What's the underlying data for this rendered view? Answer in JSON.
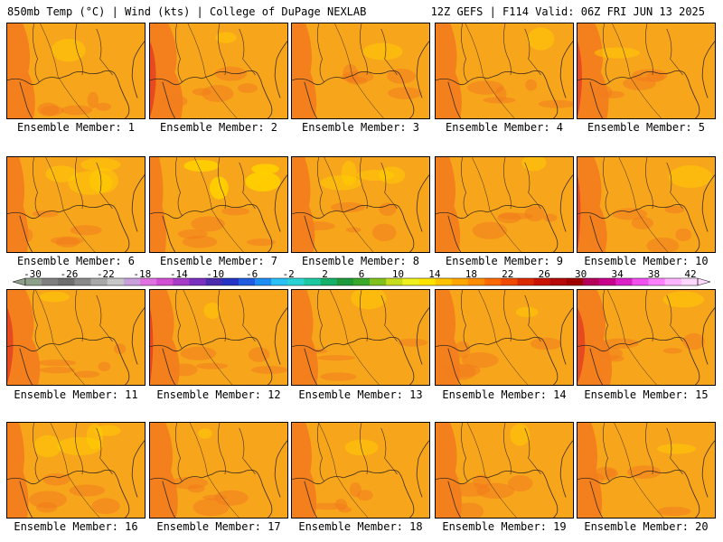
{
  "header": {
    "left": "850mb Temp (°C) | Wind (kts) | College of DuPage NEXLAB",
    "right": "12Z GEFS | F114 Valid: 06Z FRI JUN 13 2025"
  },
  "panels": [
    {
      "label": "Ensemble Member: 1",
      "warm": 0.55
    },
    {
      "label": "Ensemble Member: 2",
      "warm": 0.7
    },
    {
      "label": "Ensemble Member: 3",
      "warm": 0.45
    },
    {
      "label": "Ensemble Member: 4",
      "warm": 0.5
    },
    {
      "label": "Ensemble Member: 5",
      "warm": 0.65
    },
    {
      "label": "Ensemble Member: 6",
      "warm": 0.35
    },
    {
      "label": "Ensemble Member: 7",
      "warm": 0.2
    },
    {
      "label": "Ensemble Member: 8",
      "warm": 0.4
    },
    {
      "label": "Ensemble Member: 9",
      "warm": 0.45
    },
    {
      "label": "Ensemble Member: 10",
      "warm": 0.6
    },
    {
      "label": "Ensemble Member: 11",
      "warm": 0.7
    },
    {
      "label": "Ensemble Member: 12",
      "warm": 0.6
    },
    {
      "label": "Ensemble Member: 13",
      "warm": 0.5
    },
    {
      "label": "Ensemble Member: 14",
      "warm": 0.45
    },
    {
      "label": "Ensemble Member: 15",
      "warm": 0.75
    },
    {
      "label": "Ensemble Member: 16",
      "warm": 0.35
    },
    {
      "label": "Ensemble Member: 17",
      "warm": 0.55
    },
    {
      "label": "Ensemble Member: 18",
      "warm": 0.45
    },
    {
      "label": "Ensemble Member: 19",
      "warm": 0.5
    },
    {
      "label": "Ensemble Member: 20",
      "warm": 0.45
    }
  ],
  "colorbar": {
    "ticks": [
      "-30",
      "-26",
      "-22",
      "-18",
      "-14",
      "-10",
      "-6",
      "-2",
      "2",
      "6",
      "10",
      "14",
      "18",
      "22",
      "26",
      "30",
      "34",
      "38",
      "42"
    ],
    "colors": [
      "#8fa08a",
      "#7f7f7f",
      "#6e6e6e",
      "#8a8a8a",
      "#a8a8a8",
      "#c7c7c7",
      "#c9a0dc",
      "#e071e0",
      "#d24fd2",
      "#a63cc8",
      "#7b2fbe",
      "#4a2bb0",
      "#2433c4",
      "#1f5ce0",
      "#1e8cf0",
      "#29c0f5",
      "#2ad4d4",
      "#1ec8a0",
      "#17b06a",
      "#1e9a3a",
      "#3aa82a",
      "#7fc21e",
      "#c8dc1e",
      "#f0f01e",
      "#ffe400",
      "#ffc400",
      "#ffa600",
      "#ff8c00",
      "#ff6a00",
      "#f04a00",
      "#dc2a00",
      "#c81400",
      "#b40a0a",
      "#a00000",
      "#b4005a",
      "#c8008c",
      "#dc20c8",
      "#f050f0",
      "#ff80ff",
      "#ffb4ff",
      "#ffd8ff"
    ]
  },
  "colors": {
    "base": "#f7a51b",
    "warm": "#f27c1e",
    "hot": "#e84a1f",
    "cool": "#ffd000",
    "coast": "#3a2a1a"
  }
}
